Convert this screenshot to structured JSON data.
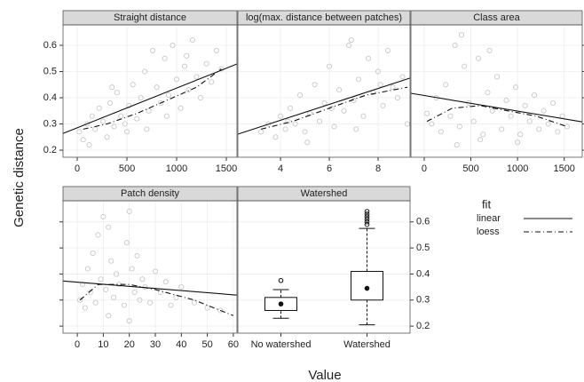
{
  "figure": {
    "ylabel": "Genetic distance",
    "xlabel": "Value",
    "legend": {
      "title": "fit",
      "entries": [
        {
          "name": "linear",
          "style": "solid"
        },
        {
          "name": "loess",
          "style": "dashdot"
        }
      ]
    }
  },
  "chart_data": [
    {
      "type": "scatter",
      "title": "Straight distance",
      "x": [
        20,
        60,
        100,
        150,
        180,
        220,
        260,
        300,
        330,
        370,
        400,
        440,
        480,
        520,
        560,
        600,
        640,
        680,
        720,
        760,
        800,
        840,
        880,
        920,
        960,
        1000,
        1040,
        1080,
        1120,
        1160,
        1200,
        1240,
        1300,
        1350,
        1400,
        1450,
        120,
        350,
        500,
        700,
        900,
        1100
      ],
      "y": [
        0.27,
        0.24,
        0.3,
        0.33,
        0.28,
        0.36,
        0.31,
        0.25,
        0.38,
        0.29,
        0.42,
        0.33,
        0.3,
        0.37,
        0.45,
        0.32,
        0.4,
        0.5,
        0.35,
        0.58,
        0.44,
        0.38,
        0.55,
        0.41,
        0.6,
        0.47,
        0.36,
        0.52,
        0.43,
        0.62,
        0.48,
        0.4,
        0.53,
        0.46,
        0.58,
        0.51,
        0.22,
        0.44,
        0.27,
        0.28,
        0.33,
        0.56
      ],
      "xlim": [
        -143,
        1607
      ],
      "xticks": [
        0,
        500,
        1000,
        1500
      ],
      "ylim": [
        0.173,
        0.678
      ],
      "yticks": [
        0.2,
        0.3,
        0.4,
        0.5,
        0.6
      ],
      "yaxis_side": "left",
      "ytick_labels": true,
      "fits": [
        {
          "name": "linear",
          "x": [
            -143,
            1607
          ],
          "values": [
            0.264,
            0.529
          ]
        },
        {
          "name": "loess",
          "x": [
            60,
            300,
            600,
            900,
            1200,
            1450
          ],
          "values": [
            0.28,
            0.3,
            0.34,
            0.39,
            0.44,
            0.51
          ]
        }
      ]
    },
    {
      "type": "scatter",
      "title": "log(max. distance between patches)",
      "x": [
        3.2,
        3.5,
        3.8,
        4.0,
        4.2,
        4.4,
        4.6,
        4.8,
        5.0,
        5.2,
        5.4,
        5.6,
        5.8,
        6.0,
        6.2,
        6.4,
        6.6,
        6.8,
        7.0,
        7.2,
        7.4,
        7.6,
        7.8,
        8.0,
        8.2,
        8.4,
        8.6,
        8.8,
        9.0,
        9.2,
        5.1,
        6.1,
        7.1,
        8.1,
        4.3,
        6.9
      ],
      "y": [
        0.27,
        0.3,
        0.25,
        0.33,
        0.28,
        0.36,
        0.3,
        0.41,
        0.27,
        0.34,
        0.45,
        0.31,
        0.38,
        0.52,
        0.29,
        0.43,
        0.35,
        0.6,
        0.39,
        0.47,
        0.33,
        0.55,
        0.42,
        0.5,
        0.37,
        0.58,
        0.44,
        0.4,
        0.48,
        0.3,
        0.23,
        0.36,
        0.28,
        0.45,
        0.31,
        0.62
      ],
      "xlim": [
        2.25,
        9.31
      ],
      "xticks": [
        4,
        6,
        8
      ],
      "ylim": [
        0.173,
        0.678
      ],
      "yticks": [
        0.2,
        0.3,
        0.4,
        0.5,
        0.6
      ],
      "yaxis_side": "none",
      "ytick_labels": false,
      "fits": [
        {
          "name": "linear",
          "x": [
            2.25,
            9.31
          ],
          "values": [
            0.261,
            0.475
          ]
        },
        {
          "name": "loess",
          "x": [
            3.2,
            4.5,
            6,
            7.5,
            9.2
          ],
          "values": [
            0.28,
            0.31,
            0.36,
            0.41,
            0.44
          ]
        }
      ]
    },
    {
      "type": "scatter",
      "title": "Class area",
      "x": [
        30,
        80,
        130,
        180,
        230,
        280,
        330,
        380,
        430,
        480,
        530,
        580,
        630,
        680,
        730,
        780,
        830,
        880,
        930,
        980,
        1030,
        1080,
        1130,
        1180,
        1230,
        1280,
        1330,
        1380,
        1430,
        1480,
        1530,
        400,
        600,
        350,
        700,
        1000
      ],
      "y": [
        0.34,
        0.3,
        0.4,
        0.27,
        0.45,
        0.33,
        0.6,
        0.29,
        0.52,
        0.38,
        0.31,
        0.55,
        0.26,
        0.42,
        0.35,
        0.48,
        0.28,
        0.39,
        0.33,
        0.44,
        0.26,
        0.37,
        0.31,
        0.41,
        0.28,
        0.35,
        0.3,
        0.38,
        0.27,
        0.33,
        0.29,
        0.64,
        0.24,
        0.22,
        0.58,
        0.23
      ],
      "xlim": [
        -142,
        1693
      ],
      "xticks": [
        0,
        500,
        1000,
        1500
      ],
      "ylim": [
        0.173,
        0.678
      ],
      "yticks": [
        0.2,
        0.3,
        0.4,
        0.5,
        0.6
      ],
      "yaxis_side": "right",
      "ytick_labels": false,
      "fits": [
        {
          "name": "linear",
          "x": [
            -142,
            1693
          ],
          "values": [
            0.417,
            0.308
          ]
        },
        {
          "name": "loess",
          "x": [
            30,
            300,
            600,
            900,
            1200,
            1530
          ],
          "values": [
            0.31,
            0.36,
            0.37,
            0.35,
            0.33,
            0.29
          ]
        }
      ]
    },
    {
      "type": "scatter",
      "title": "Patch density",
      "x": [
        1,
        2,
        3,
        4,
        5,
        6,
        7,
        8,
        9,
        10,
        11,
        12,
        13,
        14,
        15,
        16,
        18,
        19,
        20,
        21,
        22,
        23,
        24,
        25,
        26,
        28,
        30,
        32,
        34,
        36,
        38,
        40,
        45,
        50,
        55,
        12,
        20
      ],
      "y": [
        0.3,
        0.36,
        0.27,
        0.42,
        0.33,
        0.48,
        0.29,
        0.55,
        0.38,
        0.62,
        0.34,
        0.58,
        0.45,
        0.31,
        0.4,
        0.36,
        0.28,
        0.52,
        0.64,
        0.42,
        0.33,
        0.47,
        0.3,
        0.38,
        0.35,
        0.29,
        0.41,
        0.33,
        0.37,
        0.28,
        0.31,
        0.35,
        0.29,
        0.27,
        0.26,
        0.24,
        0.22
      ],
      "xlim": [
        -5.5,
        61.4
      ],
      "xticks": [
        0,
        10,
        20,
        30,
        40,
        50,
        60
      ],
      "ylim": [
        0.173,
        0.681
      ],
      "yticks": [
        0.2,
        0.3,
        0.4,
        0.5,
        0.6
      ],
      "yaxis_side": "left",
      "ytick_labels": false,
      "fits": [
        {
          "name": "linear",
          "x": [
            -5.5,
            61.4
          ],
          "values": [
            0.373,
            0.319
          ]
        },
        {
          "name": "loess",
          "x": [
            1,
            8,
            20,
            30,
            45,
            60
          ],
          "values": [
            0.3,
            0.36,
            0.36,
            0.34,
            0.3,
            0.24
          ]
        }
      ]
    },
    {
      "type": "box",
      "title": "Watershed",
      "categories": [
        "No watershed",
        "Watershed"
      ],
      "boxes": [
        {
          "whislo": 0.23,
          "q1": 0.26,
          "med": 0.285,
          "q3": 0.31,
          "whishi": 0.34,
          "outliers": [
            0.375
          ]
        },
        {
          "whislo": 0.205,
          "q1": 0.3,
          "med": 0.345,
          "q3": 0.41,
          "whishi": 0.575,
          "outliers": [
            0.59,
            0.6,
            0.61,
            0.62,
            0.63,
            0.64
          ]
        }
      ],
      "ylim": [
        0.173,
        0.681
      ],
      "yticks": [
        0.2,
        0.3,
        0.4,
        0.5,
        0.6
      ],
      "yaxis_side": "right",
      "ytick_labels": true
    }
  ]
}
